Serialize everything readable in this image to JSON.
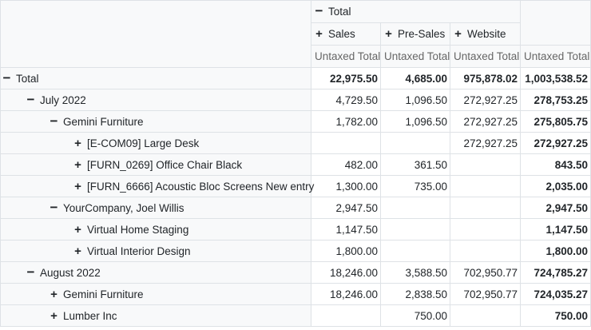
{
  "header": {
    "col_total": {
      "label": "Total",
      "icon": "minus-icon"
    },
    "cols": [
      {
        "label": "Sales",
        "icon": "plus-icon"
      },
      {
        "label": "Pre-Sales",
        "icon": "plus-icon"
      },
      {
        "label": "Website",
        "icon": "plus-icon"
      }
    ],
    "measures": [
      "Untaxed Total",
      "Untaxed Total",
      "Untaxed Total",
      "Untaxed Total"
    ]
  },
  "rows": [
    {
      "label": "Total",
      "icon": "minus-icon",
      "level": 0,
      "bold": true,
      "values": [
        "22,975.50",
        "4,685.00",
        "975,878.02",
        "1,003,538.52"
      ]
    },
    {
      "label": "July 2022",
      "icon": "minus-icon",
      "level": 1,
      "bold": false,
      "values": [
        "4,729.50",
        "1,096.50",
        "272,927.25",
        "278,753.25"
      ]
    },
    {
      "label": "Gemini Furniture",
      "icon": "minus-icon",
      "level": 2,
      "bold": false,
      "values": [
        "1,782.00",
        "1,096.50",
        "272,927.25",
        "275,805.75"
      ]
    },
    {
      "label": "[E-COM09] Large Desk",
      "icon": "plus-icon",
      "level": 3,
      "bold": false,
      "values": [
        "",
        "",
        "272,927.25",
        "272,927.25"
      ]
    },
    {
      "label": "[FURN_0269] Office Chair Black",
      "icon": "plus-icon",
      "level": 3,
      "bold": false,
      "values": [
        "482.00",
        "361.50",
        "",
        "843.50"
      ]
    },
    {
      "label": "[FURN_6666] Acoustic Bloc Screens New entry",
      "icon": "plus-icon",
      "level": 3,
      "bold": false,
      "values": [
        "1,300.00",
        "735.00",
        "",
        "2,035.00"
      ]
    },
    {
      "label": "YourCompany, Joel Willis",
      "icon": "minus-icon",
      "level": 2,
      "bold": false,
      "values": [
        "2,947.50",
        "",
        "",
        "2,947.50"
      ]
    },
    {
      "label": "Virtual Home Staging",
      "icon": "plus-icon",
      "level": 3,
      "bold": false,
      "values": [
        "1,147.50",
        "",
        "",
        "1,147.50"
      ]
    },
    {
      "label": "Virtual Interior Design",
      "icon": "plus-icon",
      "level": 3,
      "bold": false,
      "values": [
        "1,800.00",
        "",
        "",
        "1,800.00"
      ]
    },
    {
      "label": "August 2022",
      "icon": "minus-icon",
      "level": 1,
      "bold": false,
      "values": [
        "18,246.00",
        "3,588.50",
        "702,950.77",
        "724,785.27"
      ]
    },
    {
      "label": "Gemini Furniture",
      "icon": "plus-icon",
      "level": 2,
      "bold": false,
      "values": [
        "18,246.00",
        "2,838.50",
        "702,950.77",
        "724,035.27"
      ]
    },
    {
      "label": "Lumber Inc",
      "icon": "plus-icon",
      "level": 2,
      "bold": false,
      "values": [
        "",
        "750.00",
        "",
        "750.00"
      ]
    }
  ]
}
